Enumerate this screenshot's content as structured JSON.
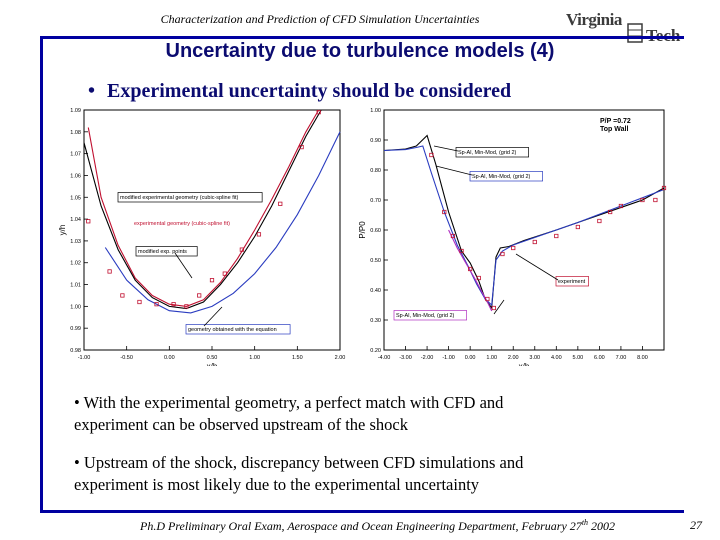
{
  "header": {
    "title": "Characterization and Prediction of CFD Simulation Uncertainties",
    "logo_line1": "Virginia",
    "logo_line2": "Tech"
  },
  "slide": {
    "title": "Uncertainty due to turbulence models (4)",
    "bullet": "Experimental uncertainty should be considered",
    "para1_line1": "• With the experimental geometry, a perfect match with CFD and",
    "para1_line2": "experiment can be observed upstream of the shock",
    "para2_line1": "• Upstream of the shock, discrepancy between CFD simulations and",
    "para2_line2": "experiment is most likely due to the experimental uncertainty"
  },
  "footer": {
    "text_before_sup": "Ph.D Preliminary Oral Exam, Aerospace and Ocean Engineering Department, February 27",
    "sup": "th",
    "text_after_sup": " 2002",
    "page_number": "27"
  },
  "colors": {
    "frame": "#0000a0",
    "title": "#0b0b70",
    "red_curve": "#c01030",
    "blue_curve": "#2a3cc0",
    "black_curve": "#000000"
  },
  "chart_data": [
    {
      "type": "line",
      "title": "",
      "xlabel": "x/h",
      "ylabel": "y/h",
      "xlim": [
        -1.0,
        2.0
      ],
      "ylim": [
        0.98,
        1.09
      ],
      "x_ticks": [
        "-1.00",
        "-0.50",
        "0.00",
        "0.50",
        "1.00",
        "1.50",
        "2.00"
      ],
      "y_ticks": [
        "0.98",
        "0.99",
        "1.00",
        "1.01",
        "1.02",
        "1.03",
        "1.04",
        "1.05",
        "1.06",
        "1.07",
        "1.08",
        "1.09"
      ],
      "annotations": [
        "modified experimental geometry (cubic-spline fit)",
        "experimental geometry (cubic-spline fit)",
        "modified exp. points",
        "geometry obtained with the equation"
      ],
      "series": [
        {
          "color": "#c01030",
          "x": [
            -0.95,
            -0.8,
            -0.6,
            -0.4,
            -0.2,
            0.0,
            0.2,
            0.4,
            0.6,
            0.8,
            1.0,
            1.2,
            1.4,
            1.6,
            1.75
          ],
          "y": [
            1.082,
            1.05,
            1.028,
            1.013,
            1.005,
            1.001,
            1.0,
            1.003,
            1.011,
            1.022,
            1.035,
            1.049,
            1.064,
            1.08,
            1.09
          ]
        },
        {
          "color": "#000000",
          "x": [
            -1.0,
            -0.8,
            -0.6,
            -0.4,
            -0.2,
            0.0,
            0.2,
            0.4,
            0.6,
            0.8,
            1.0,
            1.2,
            1.4,
            1.6,
            1.78
          ],
          "y": [
            1.075,
            1.046,
            1.026,
            1.012,
            1.004,
            1.0,
            0.999,
            1.002,
            1.01,
            1.02,
            1.032,
            1.046,
            1.062,
            1.078,
            1.09
          ]
        },
        {
          "color": "#2a3cc0",
          "x": [
            -0.75,
            -0.5,
            -0.25,
            0.0,
            0.25,
            0.5,
            0.75,
            1.0,
            1.25,
            1.5,
            1.75,
            2.0
          ],
          "y": [
            1.027,
            1.012,
            1.003,
            0.998,
            0.997,
            1.0,
            1.006,
            1.015,
            1.027,
            1.042,
            1.06,
            1.08
          ]
        },
        {
          "color": "#c01030",
          "marker": "square",
          "x": [
            -0.95,
            -0.7,
            -0.55,
            -0.35,
            -0.15,
            0.05,
            0.2,
            0.35,
            0.5,
            0.65,
            0.85,
            1.05,
            1.3,
            1.55,
            1.75
          ],
          "y": [
            1.039,
            1.016,
            1.005,
            1.002,
            1.001,
            1.001,
            1.0,
            1.005,
            1.012,
            1.015,
            1.026,
            1.033,
            1.047,
            1.073,
            1.089
          ]
        }
      ]
    },
    {
      "type": "line",
      "title": "",
      "xlabel": "x/h",
      "ylabel": "P/P0",
      "xlim": [
        -4.0,
        9.0
      ],
      "ylim": [
        0.2,
        1.0
      ],
      "x_ticks": [
        "-4.00",
        "-3.00",
        "-2.00",
        "-1.00",
        "0.00",
        "1.00",
        "2.00",
        "3.00",
        "4.00",
        "5.00",
        "6.00",
        "7.00",
        "8.00"
      ],
      "y_ticks": [
        "0.20",
        "0.30",
        "0.40",
        "0.50",
        "0.60",
        "0.70",
        "0.80",
        "0.90",
        "1.00"
      ],
      "annotations": [
        "P/P =0.72",
        "Top Wall",
        "Sp-Al, Min-Mod, (grid 2)",
        "Sp-Al, Min-Mod, (grid 2)",
        "experiment",
        "Sp-Al, Min-Mod, (grid 2)"
      ],
      "series": [
        {
          "color": "#000000",
          "x": [
            -4.0,
            -3.0,
            -2.5,
            -2.0,
            -1.6,
            -1.0,
            -0.4,
            0.0,
            0.4,
            0.7,
            1.0,
            1.2,
            1.4,
            1.8,
            2.5,
            4.0,
            6.0,
            8.0,
            9.0
          ],
          "y": [
            0.865,
            0.87,
            0.88,
            0.915,
            0.82,
            0.66,
            0.53,
            0.49,
            0.43,
            0.37,
            0.34,
            0.51,
            0.54,
            0.545,
            0.565,
            0.6,
            0.65,
            0.7,
            0.74
          ]
        },
        {
          "color": "#2a3cc0",
          "x": [
            -4.0,
            -3.0,
            -2.5,
            -2.2,
            -1.8,
            -1.2,
            -0.6,
            -0.1,
            0.3,
            0.7,
            1.0,
            1.2,
            1.5,
            2.0,
            3.0,
            5.0,
            7.0,
            9.0
          ],
          "y": [
            0.865,
            0.868,
            0.875,
            0.88,
            0.79,
            0.66,
            0.55,
            0.48,
            0.42,
            0.37,
            0.35,
            0.5,
            0.53,
            0.55,
            0.575,
            0.625,
            0.68,
            0.735
          ]
        },
        {
          "color": "#b030c0",
          "x": [
            -1.0,
            -0.6,
            -0.2,
            0.2,
            0.5,
            0.8,
            1.0
          ],
          "y": [
            0.6,
            0.54,
            0.49,
            0.44,
            0.4,
            0.36,
            0.33
          ]
        },
        {
          "color": "#c01030",
          "marker": "square",
          "x": [
            -1.8,
            -1.2,
            -0.8,
            -0.4,
            0.0,
            0.4,
            0.8,
            1.1,
            1.5,
            2.0,
            3.0,
            4.0,
            5.0,
            6.0,
            6.5,
            7.0,
            8.0,
            8.6,
            9.0
          ],
          "y": [
            0.85,
            0.66,
            0.58,
            0.53,
            0.47,
            0.44,
            0.37,
            0.34,
            0.52,
            0.54,
            0.56,
            0.58,
            0.61,
            0.63,
            0.66,
            0.68,
            0.7,
            0.7,
            0.74
          ]
        }
      ]
    }
  ]
}
